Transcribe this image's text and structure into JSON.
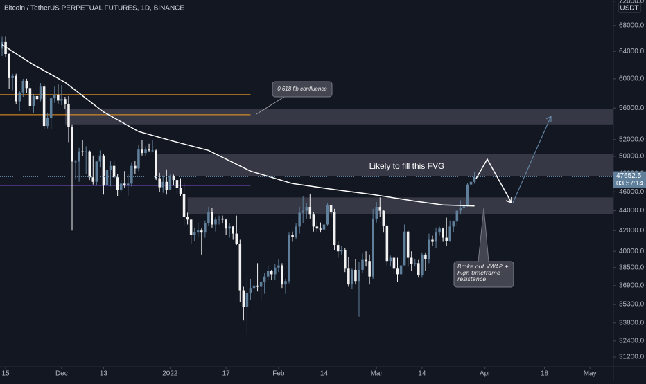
{
  "chart_data": {
    "type": "candlestick",
    "title": "Bitcoin / TetherUS PERPETUAL FUTURES, 1D, BINANCE",
    "currency": "USDT",
    "countdown": "03:57:14",
    "log_scale": true,
    "up_color": "#5f7f9b",
    "down_color": "#f2f2f2",
    "ylim": [
      30500,
      72200
    ],
    "xlim": [
      -0.6,
      174.7
    ],
    "yticks": [
      {
        "value": 31200,
        "label": "31200.0"
      },
      {
        "value": 32400,
        "label": "32400.0"
      },
      {
        "value": 33800,
        "label": "33800.0"
      },
      {
        "value": 35300,
        "label": "35300.0"
      },
      {
        "value": 36900,
        "label": "36900.0"
      },
      {
        "value": 38500,
        "label": "38500.0"
      },
      {
        "value": 40000,
        "label": "40000.0"
      },
      {
        "value": 42000,
        "label": "42000.0"
      },
      {
        "value": 44000,
        "label": "44000.0"
      },
      {
        "value": 46000,
        "label": "46000.0"
      },
      {
        "value": 48000,
        "label": "48000.0"
      },
      {
        "value": 50000,
        "label": "50000.0"
      },
      {
        "value": 52000,
        "label": "52000.0"
      },
      {
        "value": 56000,
        "label": "56000.0"
      },
      {
        "value": 60000,
        "label": "60000.0"
      },
      {
        "value": 64000,
        "label": "64000.0"
      },
      {
        "value": 68000,
        "label": "68000.0"
      },
      {
        "value": 72000,
        "label": "72000.0"
      }
    ],
    "xticks": [
      {
        "value": 1,
        "label": "15"
      },
      {
        "value": 17,
        "label": "Dec"
      },
      {
        "value": 29,
        "label": "13"
      },
      {
        "value": 48,
        "label": "2022"
      },
      {
        "value": 64,
        "label": "17"
      },
      {
        "value": 79,
        "label": "Feb"
      },
      {
        "value": 92,
        "label": "14"
      },
      {
        "value": 107,
        "label": "Mar"
      },
      {
        "value": 120,
        "label": "14"
      },
      {
        "value": 138,
        "label": "Apr"
      },
      {
        "value": 155,
        "label": "18"
      },
      {
        "value": 168,
        "label": "May"
      }
    ],
    "ohlc": [
      [
        64400,
        66300,
        63300,
        65500
      ],
      [
        65500,
        66300,
        63200,
        63600
      ],
      [
        63600,
        63700,
        58600,
        60100
      ],
      [
        60100,
        60700,
        58400,
        60400
      ],
      [
        60400,
        60700,
        56500,
        56900
      ],
      [
        56900,
        58300,
        55600,
        58100
      ],
      [
        58100,
        60000,
        57500,
        59700
      ],
      [
        59700,
        60000,
        58000,
        58700
      ],
      [
        58700,
        59400,
        55700,
        56300
      ],
      [
        56300,
        57900,
        55400,
        57600
      ],
      [
        57600,
        59300,
        56600,
        57200
      ],
      [
        57200,
        59400,
        56900,
        58900
      ],
      [
        58900,
        59200,
        53300,
        53700
      ],
      [
        53700,
        55400,
        53400,
        54700
      ],
      [
        54700,
        57500,
        53300,
        57300
      ],
      [
        57300,
        58900,
        56700,
        57800
      ],
      [
        57800,
        59200,
        56600,
        57000
      ],
      [
        57000,
        59100,
        56400,
        57200
      ],
      [
        57200,
        57500,
        55900,
        56500
      ],
      [
        56500,
        57600,
        51700,
        53600
      ],
      [
        53600,
        53900,
        42000,
        49400
      ],
      [
        49400,
        49600,
        47400,
        49400
      ],
      [
        49400,
        51000,
        47100,
        50600
      ],
      [
        50600,
        51900,
        50000,
        50500
      ],
      [
        50500,
        51200,
        48000,
        50600
      ],
      [
        50600,
        50700,
        47300,
        47600
      ],
      [
        47600,
        50100,
        46800,
        47100
      ],
      [
        47100,
        49500,
        46700,
        49400
      ],
      [
        49400,
        50700,
        48700,
        50100
      ],
      [
        50100,
        50300,
        45700,
        46700
      ],
      [
        46700,
        48600,
        46100,
        48400
      ],
      [
        48400,
        49500,
        46600,
        48900
      ],
      [
        48900,
        49500,
        47500,
        47600
      ],
      [
        47600,
        48000,
        45500,
        46200
      ],
      [
        46200,
        47300,
        45900,
        46900
      ],
      [
        46900,
        48300,
        46400,
        46700
      ],
      [
        46700,
        48000,
        45600,
        46900
      ],
      [
        46900,
        49300,
        46600,
        48900
      ],
      [
        48900,
        49500,
        48000,
        48600
      ],
      [
        48600,
        51400,
        48300,
        50800
      ],
      [
        50800,
        51900,
        50100,
        50400
      ],
      [
        50400,
        51200,
        50000,
        50800
      ],
      [
        50800,
        51500,
        50500,
        50700
      ],
      [
        50700,
        52000,
        50500,
        50700
      ],
      [
        50700,
        50800,
        47300,
        47500
      ],
      [
        47500,
        48100,
        46000,
        46500
      ],
      [
        46500,
        47800,
        45900,
        47100
      ],
      [
        47100,
        48500,
        45700,
        46200
      ],
      [
        46200,
        47900,
        46200,
        47700
      ],
      [
        47700,
        47900,
        46700,
        47300
      ],
      [
        47300,
        47500,
        45800,
        46400
      ],
      [
        46400,
        47500,
        45500,
        45800
      ],
      [
        45800,
        47000,
        42500,
        43400
      ],
      [
        43400,
        43800,
        42600,
        43100
      ],
      [
        43100,
        43100,
        40700,
        41600
      ],
      [
        41600,
        42300,
        41000,
        41800
      ],
      [
        41800,
        42800,
        41300,
        42000
      ],
      [
        42000,
        42200,
        39700,
        41800
      ],
      [
        41800,
        43000,
        41300,
        42700
      ],
      [
        42700,
        44400,
        42500,
        43900
      ],
      [
        43900,
        44300,
        42300,
        42600
      ],
      [
        42600,
        43400,
        41900,
        43100
      ],
      [
        43100,
        43500,
        42600,
        43200
      ],
      [
        43200,
        43500,
        42700,
        43100
      ],
      [
        43100,
        43200,
        41600,
        42200
      ],
      [
        42200,
        42700,
        41300,
        42400
      ],
      [
        42400,
        42500,
        41100,
        41700
      ],
      [
        41700,
        43500,
        40600,
        40700
      ],
      [
        40700,
        41100,
        35500,
        36500
      ],
      [
        36500,
        36800,
        34000,
        35100
      ],
      [
        35100,
        37600,
        32900,
        36300
      ],
      [
        36300,
        37500,
        35700,
        36700
      ],
      [
        36700,
        37600,
        35800,
        36900
      ],
      [
        36900,
        38900,
        36400,
        36800
      ],
      [
        36800,
        37300,
        35600,
        37200
      ],
      [
        37200,
        38000,
        36200,
        37700
      ],
      [
        37700,
        38700,
        37400,
        38200
      ],
      [
        38200,
        38300,
        37400,
        37900
      ],
      [
        37900,
        38800,
        37400,
        38500
      ],
      [
        38500,
        39300,
        38100,
        38700
      ],
      [
        38700,
        38900,
        36700,
        37000
      ],
      [
        37000,
        37500,
        36200,
        37300
      ],
      [
        37300,
        41800,
        37100,
        41600
      ],
      [
        41600,
        41900,
        40900,
        41400
      ],
      [
        41400,
        42700,
        41200,
        42400
      ],
      [
        42400,
        44400,
        41700,
        43800
      ],
      [
        43800,
        45500,
        42700,
        44000
      ],
      [
        44000,
        44800,
        43200,
        44400
      ],
      [
        44400,
        45800,
        43200,
        43600
      ],
      [
        43600,
        43900,
        41900,
        42400
      ],
      [
        42400,
        42900,
        41800,
        42200
      ],
      [
        42200,
        42800,
        41800,
        42100
      ],
      [
        42100,
        43000,
        41600,
        42600
      ],
      [
        42600,
        44800,
        42500,
        44600
      ],
      [
        44600,
        44600,
        43400,
        43900
      ],
      [
        43900,
        44200,
        40100,
        40600
      ],
      [
        40600,
        40900,
        39400,
        40000
      ],
      [
        40000,
        40500,
        39700,
        40100
      ],
      [
        40100,
        40300,
        38100,
        38400
      ],
      [
        38400,
        39500,
        36800,
        37000
      ],
      [
        37000,
        38400,
        36600,
        38300
      ],
      [
        38300,
        39300,
        37000,
        37300
      ],
      [
        37300,
        39000,
        34300,
        38300
      ],
      [
        38300,
        39800,
        38000,
        39200
      ],
      [
        39200,
        40000,
        38600,
        39100
      ],
      [
        39100,
        39700,
        37000,
        37700
      ],
      [
        37700,
        44200,
        37500,
        43200
      ],
      [
        43200,
        44900,
        42800,
        44400
      ],
      [
        44400,
        45400,
        43400,
        44000
      ],
      [
        44000,
        44100,
        41800,
        42500
      ],
      [
        42500,
        42600,
        38700,
        39100
      ],
      [
        39100,
        39600,
        38600,
        39400
      ],
      [
        39400,
        39600,
        37900,
        38400
      ],
      [
        38400,
        39400,
        37200,
        37900
      ],
      [
        37900,
        39400,
        37800,
        38700
      ],
      [
        38700,
        42600,
        38700,
        41900
      ],
      [
        41900,
        42000,
        38600,
        39400
      ],
      [
        39400,
        40000,
        38200,
        38800
      ],
      [
        38800,
        39300,
        38600,
        38900
      ],
      [
        38900,
        39200,
        37600,
        37800
      ],
      [
        37800,
        39900,
        37600,
        39700
      ],
      [
        39700,
        39900,
        38200,
        39300
      ],
      [
        39300,
        41700,
        38900,
        41100
      ],
      [
        41100,
        41500,
        40500,
        40900
      ],
      [
        40900,
        42300,
        40300,
        41800
      ],
      [
        41800,
        42400,
        41500,
        42200
      ],
      [
        42200,
        42300,
        40900,
        41300
      ],
      [
        41300,
        43300,
        40500,
        41000
      ],
      [
        41000,
        43000,
        40900,
        42400
      ],
      [
        42400,
        43000,
        41800,
        42900
      ],
      [
        42900,
        44100,
        42500,
        44000
      ],
      [
        44000,
        45100,
        43600,
        44300
      ],
      [
        44300,
        44800,
        44100,
        44500
      ],
      [
        44500,
        47000,
        44400,
        46800
      ],
      [
        46800,
        48100,
        46600,
        47100
      ],
      [
        47100,
        48200,
        46900,
        47652.5
      ]
    ],
    "vwap": {
      "color": "#ffffff",
      "x": [
        0,
        9,
        18,
        29,
        39,
        49,
        59,
        71,
        83,
        94,
        106,
        118,
        126,
        135
      ],
      "values": [
        65000,
        62000,
        59500,
        55500,
        53000,
        51800,
        50700,
        48300,
        46900,
        46300,
        45700,
        45000,
        44600,
        44500
      ]
    },
    "zones": [
      {
        "low": 53900,
        "high": 55850,
        "from": 18
      },
      {
        "low": 47750,
        "high": 50300,
        "from": 44
      },
      {
        "low": 43660,
        "high": 45400,
        "from": 53
      }
    ],
    "levels": [
      {
        "value": 57800,
        "to": 71,
        "color": "#f59b23"
      },
      {
        "value": 55130,
        "to": 71,
        "color": "#f59b23"
      },
      {
        "value": 46700,
        "to": 71,
        "color": "#7b4fc9"
      }
    ],
    "annotations": [
      "0.618 fib confluence",
      "Likely to fill this FVG",
      "Broke out VWAP + high timeframe resistance"
    ]
  }
}
